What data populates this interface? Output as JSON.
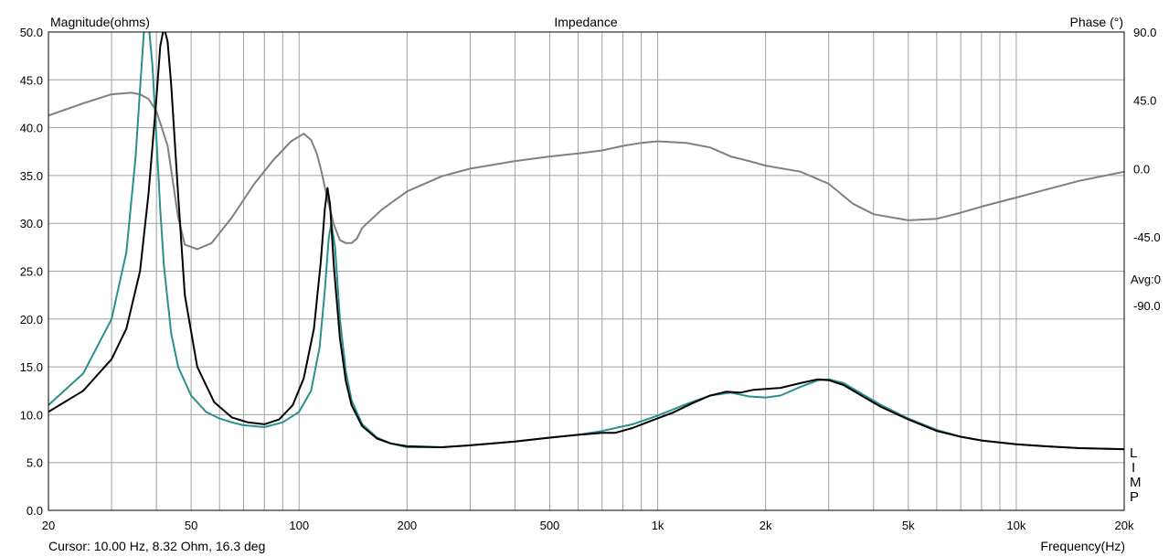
{
  "chart_data": {
    "type": "line",
    "title": "Impedance",
    "ylabel": "Magnitude(ohms)",
    "y2label": "Phase (°)",
    "xlabel": "Frequency(Hz)",
    "xscale": "log",
    "xlim": [
      20,
      20000
    ],
    "ylim": [
      0,
      50
    ],
    "y2lim": [
      -225,
      90
    ],
    "grid": true,
    "x_tick_labels": [
      "20",
      "50",
      "100",
      "200",
      "500",
      "1k",
      "2k",
      "5k",
      "10k",
      "20k"
    ],
    "x_tick_values": [
      20,
      50,
      100,
      200,
      500,
      1000,
      2000,
      5000,
      10000,
      20000
    ],
    "y_tick_labels": [
      "0.0",
      "5.0",
      "10.0",
      "15.0",
      "20.0",
      "25.0",
      "30.0",
      "35.0",
      "40.0",
      "45.0",
      "50.0"
    ],
    "y2_tick_labels": [
      "90.0",
      "45.0",
      "0.0",
      "-45.0",
      "-90.0"
    ],
    "y2_tick_values": [
      90,
      45,
      0,
      -45,
      -90
    ],
    "avg_label": "Avg:0",
    "legend_letters": [
      "L",
      "I",
      "M",
      "P"
    ],
    "cursor_text": "Cursor: 10.00 Hz, 8.32 Ohm, 16.3 deg",
    "series": [
      {
        "color": "#000000",
        "x": [
          20,
          25,
          30,
          33,
          36,
          38,
          40,
          41,
          42,
          43,
          44,
          46,
          48,
          52,
          58,
          65,
          72,
          80,
          88,
          96,
          103,
          110,
          115,
          118,
          120,
          122,
          125,
          130,
          135,
          140,
          150,
          165,
          180,
          200,
          250,
          300,
          400,
          500,
          600,
          700,
          760,
          850,
          950,
          1100,
          1250,
          1400,
          1550,
          1700,
          1850,
          2000,
          2200,
          2500,
          2800,
          3000,
          3300,
          3700,
          4200,
          5000,
          6000,
          7000,
          8000,
          10000,
          12000,
          15000,
          20000
        ],
        "values": [
          10.3,
          12.5,
          15.8,
          19.0,
          25.0,
          33.0,
          43.0,
          48.5,
          50.5,
          49.0,
          44.5,
          33.0,
          22.5,
          15.0,
          11.3,
          9.7,
          9.2,
          9.0,
          9.5,
          11.0,
          13.8,
          19.0,
          26.0,
          31.5,
          33.7,
          32.0,
          25.5,
          18.0,
          13.5,
          11.0,
          8.8,
          7.5,
          7.0,
          6.7,
          6.6,
          6.8,
          7.2,
          7.6,
          7.9,
          8.1,
          8.1,
          8.6,
          9.3,
          10.2,
          11.2,
          12.0,
          12.4,
          12.3,
          12.6,
          12.7,
          12.8,
          13.3,
          13.7,
          13.6,
          13.1,
          12.0,
          10.8,
          9.5,
          8.3,
          7.7,
          7.3,
          6.9,
          6.7,
          6.5,
          6.4
        ]
      },
      {
        "color": "#2a8f8f",
        "x": [
          20,
          25,
          30,
          33,
          35,
          36,
          37,
          38,
          39,
          40,
          41,
          42,
          44,
          46,
          50,
          55,
          60,
          65,
          70,
          80,
          90,
          100,
          108,
          114,
          118,
          121,
          123,
          126,
          130,
          135,
          140,
          150,
          165,
          180,
          200,
          250,
          300,
          400,
          500,
          600,
          700,
          850,
          1000,
          1200,
          1400,
          1600,
          1800,
          2000,
          2200,
          2500,
          2800,
          3000,
          3300,
          3700,
          4200,
          5000,
          6000,
          7000,
          8000,
          10000,
          12000,
          15000,
          20000
        ],
        "values": [
          11.0,
          14.3,
          20.0,
          27.0,
          37.0,
          44.0,
          50.5,
          51.0,
          46.5,
          39.0,
          31.5,
          25.5,
          18.5,
          15.0,
          12.0,
          10.3,
          9.6,
          9.2,
          8.9,
          8.7,
          9.2,
          10.3,
          12.5,
          17.0,
          23.0,
          28.5,
          30.0,
          27.5,
          20.0,
          14.5,
          11.5,
          9.0,
          7.6,
          7.0,
          6.6,
          6.6,
          6.8,
          7.2,
          7.6,
          7.9,
          8.3,
          9.0,
          9.9,
          11.1,
          12.0,
          12.3,
          11.9,
          11.8,
          12.0,
          12.9,
          13.6,
          13.7,
          13.3,
          12.2,
          11.0,
          9.6,
          8.4,
          7.7,
          7.3,
          6.9,
          6.7,
          6.5,
          6.4
        ]
      },
      {
        "color": "#808080",
        "axis": "right",
        "x": [
          20,
          25,
          30,
          34,
          36,
          38,
          40,
          43,
          46,
          48,
          52,
          57,
          65,
          75,
          85,
          95,
          103,
          108,
          112,
          115,
          120,
          125,
          130,
          135,
          140,
          145,
          150,
          170,
          200,
          250,
          300,
          400,
          500,
          600,
          700,
          800,
          900,
          1000,
          1200,
          1400,
          1600,
          1800,
          2000,
          2500,
          3000,
          3500,
          4000,
          5000,
          6000,
          7000,
          8000,
          10000,
          12000,
          15000,
          20000
        ],
        "values": [
          35,
          43,
          49,
          50,
          49,
          46,
          38,
          15,
          -32,
          -50,
          -53,
          -49,
          -32,
          -10,
          6,
          18,
          23,
          19,
          10,
          0,
          -20,
          -37,
          -47,
          -49,
          -49,
          -46,
          -39,
          -27,
          -15,
          -5,
          0,
          5,
          8,
          10,
          12,
          15,
          17,
          18,
          17,
          14,
          8,
          5,
          2,
          -2,
          -10,
          -23,
          -30,
          -34,
          -33,
          -29,
          -25,
          -19,
          -14,
          -8,
          -2
        ]
      }
    ]
  }
}
